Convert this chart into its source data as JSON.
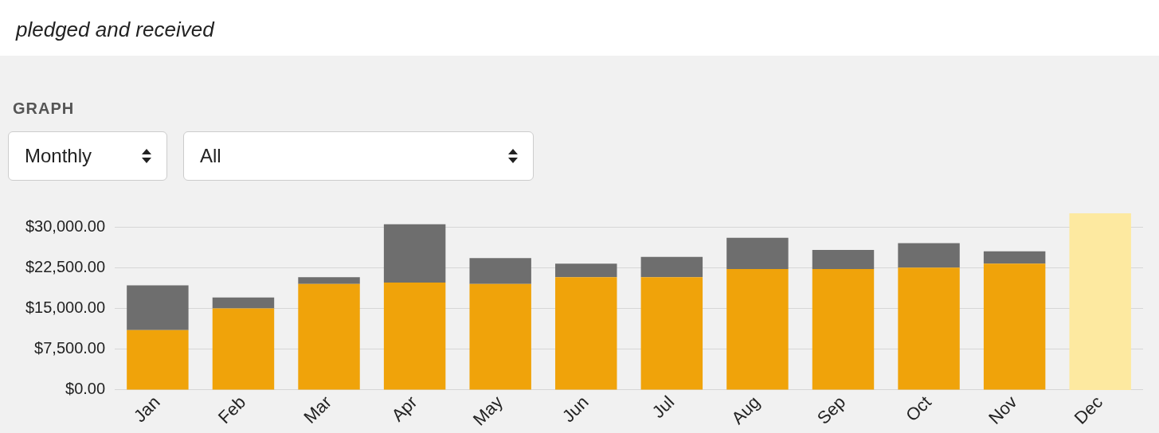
{
  "chart_data": {
    "type": "bar",
    "title": "GRAPH",
    "subtitle": "pledged and received",
    "annotations": [
      "Monthly",
      "All"
    ],
    "categories": [
      "Jan",
      "Feb",
      "Mar",
      "Apr",
      "May",
      "Jun",
      "Jul",
      "Aug",
      "Sep",
      "Oct",
      "Nov",
      "Dec"
    ],
    "stacked": true,
    "series": [
      {
        "color": "#f0a30a",
        "values": [
          11000,
          15000,
          19500,
          19750,
          19500,
          20750,
          20750,
          22250,
          22250,
          22500,
          23250,
          null
        ]
      },
      {
        "color": "#6e6e6e",
        "values": [
          8250,
          2000,
          1250,
          10750,
          4750,
          2500,
          3750,
          5750,
          3500,
          4500,
          2250,
          null
        ]
      }
    ],
    "bands": [
      {
        "axis": "x",
        "from": "Dec",
        "to": "Dec",
        "color": "#fde9a0"
      }
    ],
    "ylim": [
      0,
      32500
    ],
    "yticks": [
      {
        "value": 0,
        "label": "$0.00"
      },
      {
        "value": 7500,
        "label": "$7,500.00"
      },
      {
        "value": 15000,
        "label": "$15,000.00"
      },
      {
        "value": 22500,
        "label": "$22,500.00"
      },
      {
        "value": 30000,
        "label": "$30,000.00"
      }
    ],
    "grid": "y",
    "legend": false
  }
}
